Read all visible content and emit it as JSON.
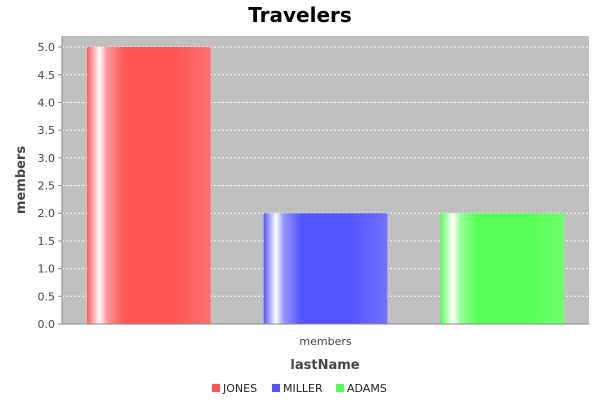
{
  "chart_data": {
    "type": "bar",
    "title": "Travelers",
    "xlabel": "lastName",
    "ylabel": "members",
    "categories": [
      "members"
    ],
    "series": [
      {
        "name": "JONES",
        "values": [
          5.0
        ],
        "color": "#ff5555"
      },
      {
        "name": "MILLER",
        "values": [
          2.0
        ],
        "color": "#5555ff"
      },
      {
        "name": "ADAMS",
        "values": [
          2.0
        ],
        "color": "#55ff55"
      }
    ],
    "ylim": [
      0,
      5.2
    ],
    "yticks": [
      "0.0",
      "0.5",
      "1.0",
      "1.5",
      "2.0",
      "2.5",
      "3.0",
      "3.5",
      "4.0",
      "4.5",
      "5.0"
    ],
    "grid": true,
    "legend_position": "bottom",
    "plot_background": "#c0c0c0"
  }
}
